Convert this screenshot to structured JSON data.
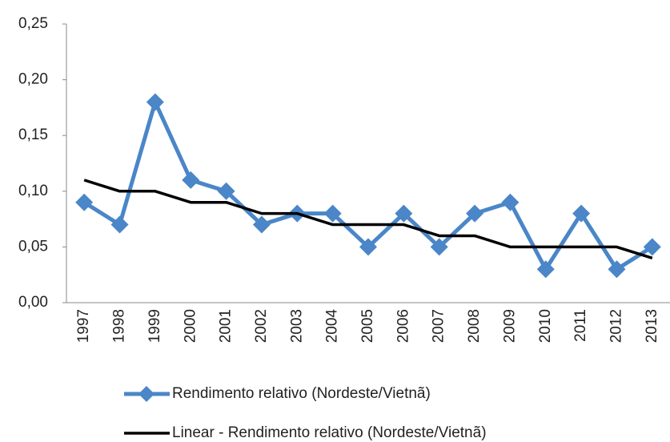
{
  "chart_data": {
    "type": "line",
    "categories": [
      "1997",
      "1998",
      "1999",
      "2000",
      "2001",
      "2002",
      "2003",
      "2004",
      "2005",
      "2006",
      "2007",
      "2008",
      "2009",
      "2010",
      "2011",
      "2012",
      "2013"
    ],
    "series": [
      {
        "name": "Rendimento relativo (Nordeste/Vietnã)",
        "color": "#4a86c8",
        "marker": "diamond",
        "values": [
          0.09,
          0.07,
          0.18,
          0.11,
          0.1,
          0.07,
          0.08,
          0.08,
          0.05,
          0.08,
          0.05,
          0.08,
          0.09,
          0.03,
          0.08,
          0.03,
          0.05
        ]
      },
      {
        "name": "Linear - Rendimento relativo (Nordeste/Vietnã)",
        "color": "#000000",
        "values": [
          0.11,
          0.1,
          0.1,
          0.09,
          0.09,
          0.08,
          0.08,
          0.07,
          0.07,
          0.07,
          0.06,
          0.06,
          0.05,
          0.05,
          0.05,
          0.05,
          0.04
        ]
      }
    ],
    "ylim": [
      0,
      0.25
    ],
    "yticks": [
      {
        "value": 0,
        "label": "0,00"
      },
      {
        "value": 0.05,
        "label": "0,05"
      },
      {
        "value": 0.1,
        "label": "0,10"
      },
      {
        "value": 0.15,
        "label": "0,15"
      },
      {
        "value": 0.2,
        "label": "0,20"
      },
      {
        "value": 0.25,
        "label": "0,25"
      }
    ],
    "grid": false
  }
}
